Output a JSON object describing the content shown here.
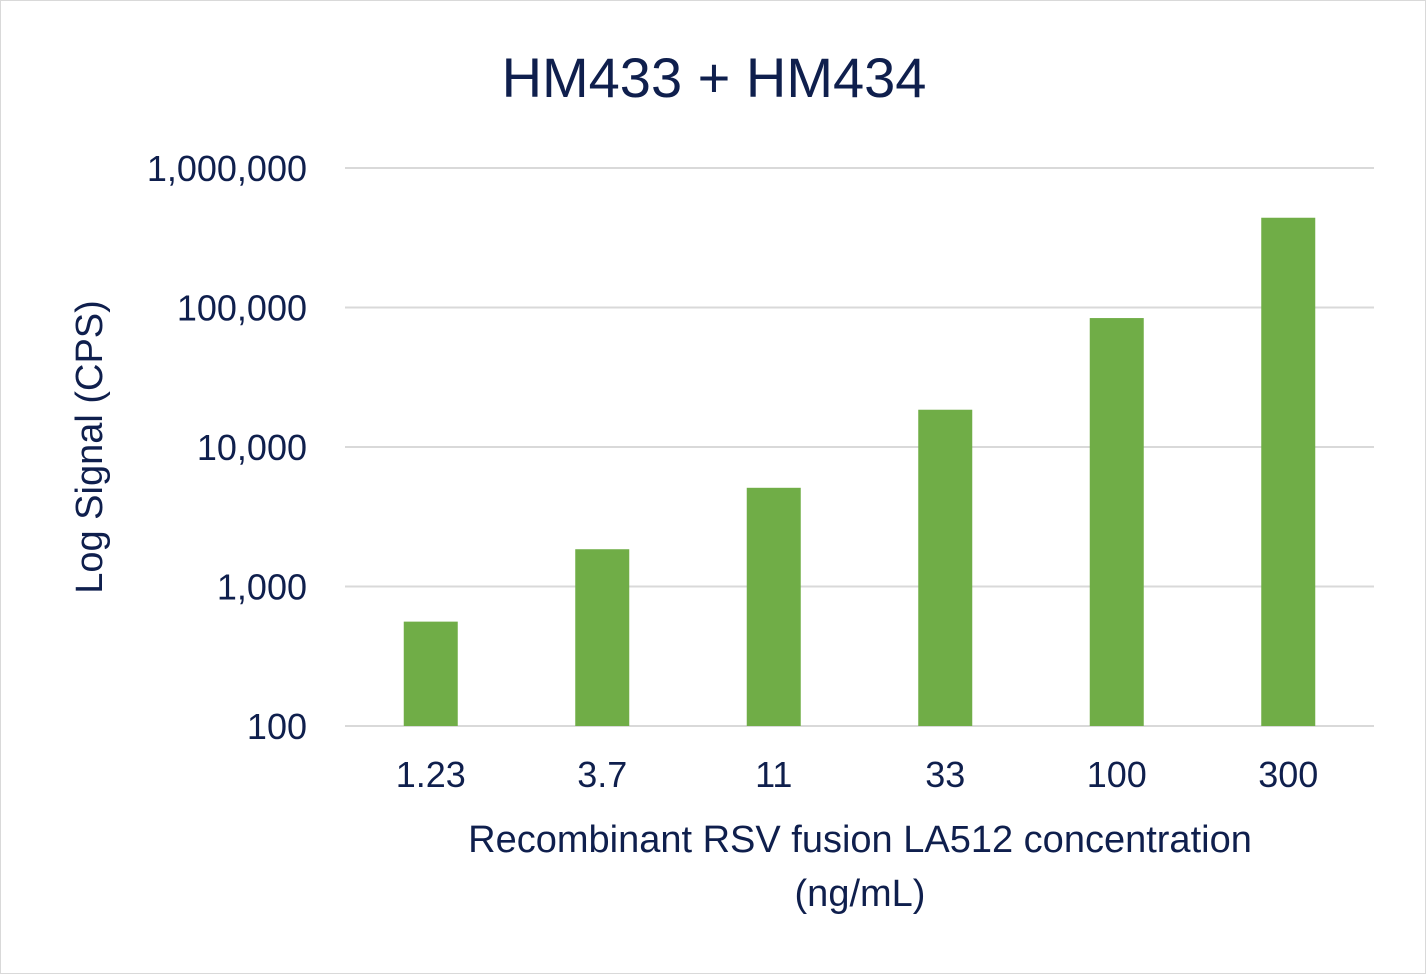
{
  "chart_data": {
    "type": "bar",
    "title": "HM433 + HM434",
    "xlabel_lines": [
      "Recombinant RSV fusion LA512 concentration",
      "(ng/mL)"
    ],
    "ylabel": "Log Signal (CPS)",
    "y_scale": "log10",
    "ylim": [
      100,
      1000000
    ],
    "y_ticks": [
      100,
      1000,
      10000,
      100000,
      1000000
    ],
    "y_tick_labels": [
      "100",
      "1,000",
      "10,000",
      "100,000",
      "1,000,000"
    ],
    "categories": [
      "1.23",
      "3.7",
      "11",
      "33",
      "100",
      "300"
    ],
    "series": [
      {
        "values": [
          560,
          1850,
          5100,
          18500,
          84000,
          440000
        ]
      }
    ],
    "colors": {
      "bar": "#70ad47",
      "text": "#0f1f4d",
      "grid": "#d9d9d9"
    },
    "grid": true,
    "legend": "none"
  }
}
